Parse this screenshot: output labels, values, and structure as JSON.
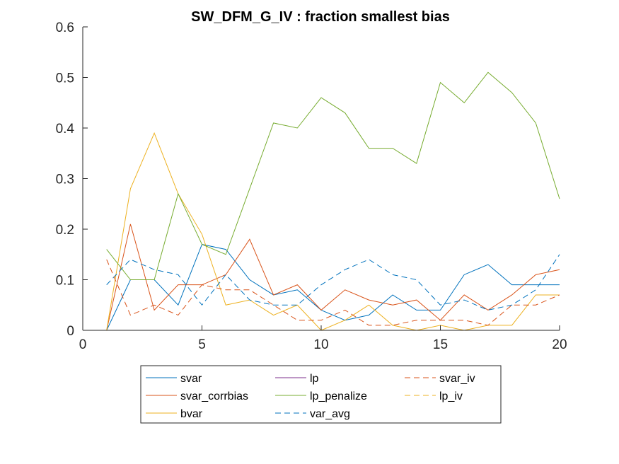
{
  "chart_data": {
    "type": "line",
    "title": "SW_DFM_G_IV : fraction smallest bias",
    "xlabel": "",
    "ylabel": "",
    "xlim": [
      0,
      20
    ],
    "ylim": [
      0,
      0.6
    ],
    "xticks": [
      0,
      5,
      10,
      15,
      20
    ],
    "xtick_labels": [
      "0",
      "5",
      "10",
      "15",
      "20"
    ],
    "yticks": [
      0,
      0.1,
      0.2,
      0.3,
      0.4,
      0.5,
      0.6
    ],
    "ytick_labels": [
      "0",
      "0.1",
      "0.2",
      "0.3",
      "0.4",
      "0.5",
      "0.6"
    ],
    "grid": false,
    "legend_placement": "bottom-outside",
    "x": [
      1,
      2,
      3,
      4,
      5,
      6,
      7,
      8,
      9,
      10,
      11,
      12,
      13,
      14,
      15,
      16,
      17,
      18,
      19,
      20
    ],
    "series": [
      {
        "name": "svar",
        "color": "#0072BD",
        "dash": "solid",
        "values": [
          0,
          0.1,
          0.1,
          0.05,
          0.17,
          0.16,
          0.1,
          0.07,
          0.08,
          0.04,
          0.02,
          0.03,
          0.07,
          0.04,
          0.04,
          0.11,
          0.13,
          0.09,
          0.09,
          0.09
        ]
      },
      {
        "name": "svar_corrbias",
        "color": "#D95319",
        "dash": "solid",
        "values": [
          0,
          0.21,
          0.04,
          0.09,
          0.09,
          0.11,
          0.18,
          0.07,
          0.09,
          0.04,
          0.08,
          0.06,
          0.05,
          0.06,
          0.02,
          0.07,
          0.04,
          0.07,
          0.11,
          0.12
        ]
      },
      {
        "name": "bvar",
        "color": "#EDB120",
        "dash": "solid",
        "values": [
          0,
          0.28,
          0.39,
          0.27,
          0.19,
          0.05,
          0.06,
          0.03,
          0.05,
          0,
          0.02,
          0.05,
          0.01,
          0,
          0.01,
          0,
          0.01,
          0.01,
          0.07,
          0.07
        ]
      },
      {
        "name": "lp",
        "color": "#7E2F8E",
        "dash": "solid",
        "values": [
          0,
          0,
          0,
          0,
          0,
          0,
          0,
          0,
          0,
          0,
          0,
          0,
          0,
          0,
          0,
          0,
          0,
          0,
          0,
          0
        ]
      },
      {
        "name": "lp_penalize",
        "color": "#77AC30",
        "dash": "solid",
        "values": [
          0.16,
          0.1,
          0.1,
          0.27,
          0.17,
          0.15,
          0.28,
          0.41,
          0.4,
          0.46,
          0.43,
          0.36,
          0.36,
          0.33,
          0.49,
          0.45,
          0.51,
          0.47,
          0.41,
          0.26
        ]
      },
      {
        "name": "var_avg",
        "color": "#0072BD",
        "dash": "dashed",
        "values": [
          0.09,
          0.14,
          0.12,
          0.11,
          0.05,
          0.11,
          0.06,
          0.05,
          0.05,
          0.09,
          0.12,
          0.14,
          0.11,
          0.1,
          0.05,
          0.06,
          0.04,
          0.05,
          0.08,
          0.15
        ]
      },
      {
        "name": "svar_iv",
        "color": "#D95319",
        "dash": "dashed",
        "values": [
          0.14,
          0.03,
          0.05,
          0.03,
          0.09,
          0.08,
          0.08,
          0.05,
          0.02,
          0.02,
          0.04,
          0.01,
          0.01,
          0.02,
          0.02,
          0.02,
          0.01,
          0.05,
          0.05,
          0.07
        ]
      },
      {
        "name": "lp_iv",
        "color": "#EDB120",
        "dash": "dashed",
        "values": [
          0,
          0,
          0,
          0,
          0,
          0,
          0,
          0,
          0,
          0,
          0,
          0,
          0,
          0,
          0,
          0,
          0,
          0,
          0,
          0
        ]
      }
    ],
    "legend_order": [
      "svar",
      "lp",
      "svar_iv",
      "svar_corrbias",
      "lp_penalize",
      "lp_iv",
      "bvar",
      "var_avg"
    ]
  }
}
